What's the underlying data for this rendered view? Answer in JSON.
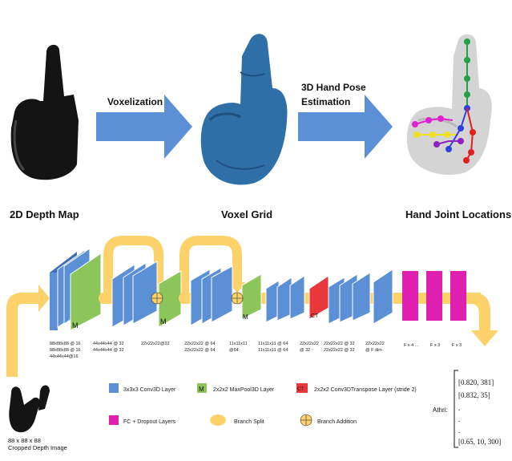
{
  "top": {
    "stages": [
      "2D Depth Map",
      "Voxel Grid",
      "Hand Joint Locations"
    ],
    "arrow1_label": "Voxelization",
    "arrow2_label_line1": "3D Hand Pose",
    "arrow2_label_line2": "Estimation"
  },
  "network": {
    "block_m_label": "M",
    "block_ct_label": "CT",
    "dims": [
      {
        "lines": [
          "88x88x88 @ 16",
          "88x88x88 @ 16",
          "44x44x44@16"
        ]
      },
      {
        "lines": [
          "44x44x44 @ 32",
          "44x44x44 @ 32"
        ]
      },
      {
        "lines": [
          "22x22x22@32"
        ]
      },
      {
        "lines": [
          "22x22x22 @ 64",
          "22x22x22 @ 64"
        ]
      },
      {
        "lines": [
          "11x11x11",
          "@64"
        ]
      },
      {
        "lines": [
          "11x11x11 @ 64",
          "11x11x11 @ 64"
        ]
      },
      {
        "lines": [
          "22x22x22",
          "@ 32"
        ]
      },
      {
        "lines": [
          "22x22x22 @ 32",
          "22x22x22 @ 32"
        ]
      },
      {
        "lines": [
          "22x22x22",
          "@ F dim"
        ]
      },
      {
        "lines": [
          "F x 4 ..."
        ]
      },
      {
        "lines": [
          "F x 3"
        ]
      },
      {
        "lines": [
          "F x 3"
        ]
      }
    ],
    "input_dim": "88 x 88 x 88",
    "input_caption": "Cropped Depth Image"
  },
  "legend": {
    "conv": "3x3x3 Conv3D Layer",
    "maxpool": "2x2x2 MaxPool3D Layer",
    "transpose": "2x2x2 Conv3DTranspose Layer (stride 2)",
    "fc": "FC + Dropout Layers",
    "split": "Branch Split",
    "addition": "Branch Addition"
  },
  "output": {
    "rows": [
      "[0.820, 381]",
      "[0.832, 35]",
      ".",
      ".",
      ".",
      "[0.65, 10, 300]"
    ],
    "label": "Athri:"
  },
  "colors": {
    "arrow_blue": "#5b8fd6",
    "conv_blue": "#5b8fd6",
    "conv_blue_dark": "#3f6fb3",
    "maxpool_green": "#8cc65a",
    "transpose_red": "#e8383d",
    "fc_magenta": "#e020b0",
    "branch_yellow": "#fdd26a",
    "voxel_blue": "#2f6fa8"
  }
}
